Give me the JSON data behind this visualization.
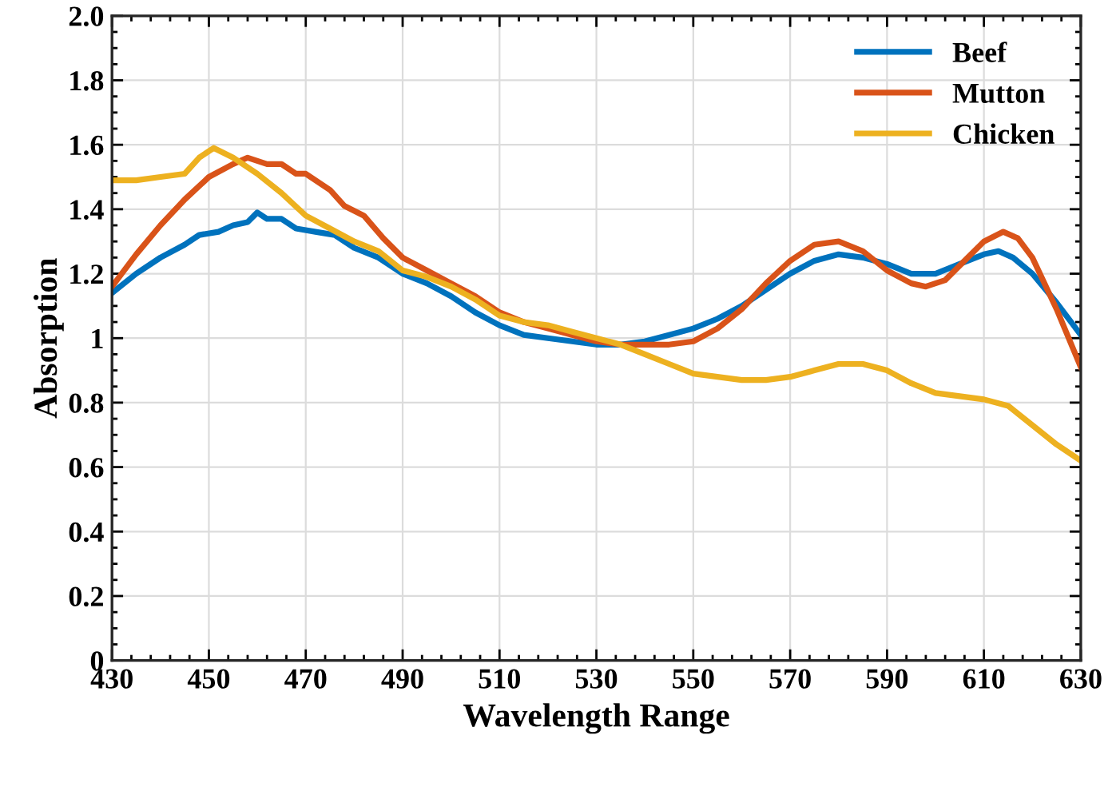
{
  "chart_data": {
    "type": "line",
    "xlabel": "Wavelength Range",
    "ylabel": "Absorption",
    "xlim": [
      430,
      630
    ],
    "xticks": [
      430,
      450,
      470,
      490,
      510,
      530,
      550,
      570,
      590,
      610,
      630
    ],
    "ylim": [
      0,
      2
    ],
    "yticks": [
      0,
      {
        "value": 0.2,
        "label": "0.2"
      },
      {
        "value": 0.4,
        "label": "0.4"
      },
      {
        "value": 0.6,
        "label": "0.6"
      },
      {
        "value": 0.8,
        "label": "0.8"
      },
      1,
      {
        "value": 1.2,
        "label": "1.2"
      },
      {
        "value": 1.4,
        "label": "1.4"
      },
      {
        "value": 1.6,
        "label": "1.6"
      },
      {
        "value": 1.8,
        "label": "1.8"
      },
      {
        "value": 2,
        "label": "2.0"
      }
    ],
    "grid": true,
    "legend": "top right",
    "marker": "none",
    "line_style": "solid",
    "series": [
      {
        "name": "Beef",
        "color": "#0072bd",
        "x": [
          430,
          435,
          440,
          445,
          448,
          452,
          455,
          458,
          460,
          462,
          465,
          468,
          472,
          476,
          480,
          485,
          490,
          495,
          500,
          505,
          510,
          515,
          520,
          525,
          530,
          535,
          540,
          545,
          550,
          555,
          560,
          565,
          570,
          575,
          580,
          585,
          590,
          595,
          600,
          605,
          610,
          613,
          616,
          620,
          625,
          630
        ],
        "values": [
          1.14,
          1.2,
          1.25,
          1.29,
          1.32,
          1.33,
          1.35,
          1.36,
          1.39,
          1.37,
          1.37,
          1.34,
          1.33,
          1.32,
          1.28,
          1.25,
          1.2,
          1.17,
          1.13,
          1.08,
          1.04,
          1.01,
          1.0,
          0.99,
          0.98,
          0.98,
          0.99,
          1.01,
          1.03,
          1.06,
          1.1,
          1.15,
          1.2,
          1.24,
          1.26,
          1.25,
          1.23,
          1.2,
          1.2,
          1.23,
          1.26,
          1.27,
          1.25,
          1.2,
          1.11,
          1.01
        ]
      },
      {
        "name": "Mutton",
        "color": "#d95319",
        "x": [
          430,
          435,
          440,
          445,
          450,
          455,
          458,
          462,
          465,
          468,
          470,
          475,
          478,
          482,
          486,
          490,
          495,
          500,
          505,
          510,
          515,
          520,
          525,
          530,
          535,
          540,
          545,
          550,
          555,
          560,
          565,
          570,
          575,
          580,
          585,
          590,
          595,
          598,
          602,
          606,
          610,
          614,
          617,
          620,
          625,
          630
        ],
        "values": [
          1.16,
          1.26,
          1.35,
          1.43,
          1.5,
          1.54,
          1.56,
          1.54,
          1.54,
          1.51,
          1.51,
          1.46,
          1.41,
          1.38,
          1.31,
          1.25,
          1.21,
          1.17,
          1.13,
          1.08,
          1.05,
          1.03,
          1.01,
          0.99,
          0.98,
          0.98,
          0.98,
          0.99,
          1.03,
          1.09,
          1.17,
          1.24,
          1.29,
          1.3,
          1.27,
          1.21,
          1.17,
          1.16,
          1.18,
          1.24,
          1.3,
          1.33,
          1.31,
          1.25,
          1.09,
          0.91
        ]
      },
      {
        "name": "Chicken",
        "color": "#edb120",
        "x": [
          430,
          435,
          440,
          445,
          448,
          451,
          455,
          460,
          465,
          470,
          475,
          480,
          485,
          490,
          495,
          500,
          505,
          510,
          515,
          520,
          525,
          530,
          535,
          540,
          545,
          550,
          555,
          560,
          565,
          570,
          575,
          580,
          585,
          590,
          595,
          600,
          605,
          610,
          615,
          620,
          625,
          630
        ],
        "values": [
          1.49,
          1.49,
          1.5,
          1.51,
          1.56,
          1.59,
          1.56,
          1.51,
          1.45,
          1.38,
          1.34,
          1.3,
          1.27,
          1.21,
          1.19,
          1.16,
          1.12,
          1.07,
          1.05,
          1.04,
          1.02,
          1.0,
          0.98,
          0.95,
          0.92,
          0.89,
          0.88,
          0.87,
          0.87,
          0.88,
          0.9,
          0.92,
          0.92,
          0.9,
          0.86,
          0.83,
          0.82,
          0.81,
          0.79,
          0.73,
          0.67,
          0.62
        ]
      }
    ]
  }
}
